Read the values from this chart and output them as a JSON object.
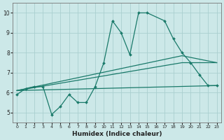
{
  "xlabel": "Humidex (Indice chaleur)",
  "bg_color": "#cce8e8",
  "grid_color": "#aacfcf",
  "line_color": "#1a7a6a",
  "x_ticks": [
    0,
    1,
    2,
    3,
    4,
    5,
    6,
    7,
    8,
    9,
    10,
    11,
    12,
    13,
    14,
    15,
    16,
    17,
    18,
    19,
    20,
    21,
    22,
    23
  ],
  "ylim": [
    4.5,
    10.5
  ],
  "xlim": [
    -0.5,
    23.5
  ],
  "yticks": [
    5,
    6,
    7,
    8,
    9,
    10
  ],
  "line1_x": [
    0,
    1,
    2,
    3,
    4,
    5,
    6,
    7,
    8,
    9,
    10,
    11,
    12,
    13,
    14,
    15,
    17,
    18,
    19,
    20,
    21,
    22,
    23
  ],
  "line1_y": [
    5.9,
    6.2,
    6.3,
    6.3,
    4.9,
    5.3,
    5.9,
    5.5,
    5.5,
    6.3,
    7.5,
    9.6,
    9.0,
    7.9,
    10.0,
    10.0,
    9.6,
    8.7,
    8.0,
    7.5,
    6.9,
    6.35,
    6.35
  ],
  "line2_x": [
    0,
    23
  ],
  "line2_y": [
    6.1,
    6.35
  ],
  "line3_x": [
    0,
    19,
    23
  ],
  "line3_y": [
    6.1,
    7.5,
    7.5
  ],
  "line4_x": [
    0,
    19,
    23
  ],
  "line4_y": [
    6.1,
    7.85,
    7.5
  ]
}
